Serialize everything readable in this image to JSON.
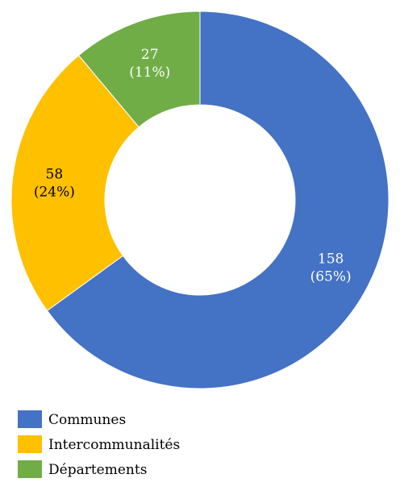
{
  "chart_data": {
    "type": "pie",
    "variant": "donut",
    "categories": [
      "Communes",
      "Intercommunalités",
      "Départements"
    ],
    "values": [
      158,
      58,
      27
    ],
    "percent_labels": [
      "(65%)",
      "(24%)",
      "(11%)"
    ],
    "colors": [
      "#4472C4",
      "#FFC000",
      "#70AD47"
    ],
    "label_colors": [
      "#ffffff",
      "#000000",
      "#ffffff"
    ],
    "legend_position": "bottom-left",
    "title": ""
  }
}
